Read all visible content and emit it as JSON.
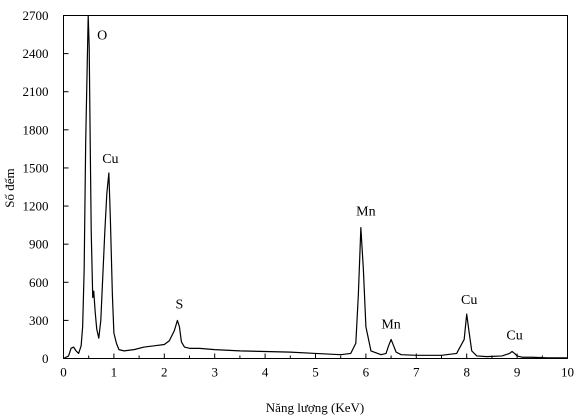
{
  "chart_data": {
    "type": "line",
    "title": "",
    "xlabel": "Năng lượng (KeV)",
    "ylabel": "Số đếm",
    "xlim": [
      0,
      10
    ],
    "ylim": [
      0,
      2700
    ],
    "xticks": [
      0,
      1,
      2,
      3,
      4,
      5,
      6,
      7,
      8,
      9,
      10
    ],
    "xtick_labels": [
      "0",
      "1",
      "2",
      "3",
      "4",
      "5",
      "6",
      "7",
      "8",
      "9",
      "10"
    ],
    "yticks": [
      0,
      300,
      600,
      900,
      1200,
      1500,
      1800,
      2100,
      2400,
      2700
    ],
    "ytick_labels": [
      "0",
      "300",
      "600",
      "900",
      "1200",
      "1500",
      "1800",
      "2100",
      "2400",
      "2700"
    ],
    "grid": false,
    "series": [
      {
        "color": "#000000",
        "x": [
          0.0,
          0.1,
          0.15,
          0.2,
          0.25,
          0.3,
          0.35,
          0.38,
          0.41,
          0.44,
          0.47,
          0.49,
          0.51,
          0.53,
          0.55,
          0.58,
          0.6,
          0.63,
          0.66,
          0.7,
          0.74,
          0.78,
          0.82,
          0.86,
          0.9,
          0.93,
          0.97,
          1.0,
          1.05,
          1.1,
          1.2,
          1.4,
          1.6,
          1.8,
          2.0,
          2.1,
          2.2,
          2.26,
          2.3,
          2.34,
          2.4,
          2.5,
          2.7,
          3.0,
          3.5,
          4.0,
          4.5,
          5.0,
          5.5,
          5.7,
          5.8,
          5.85,
          5.9,
          5.95,
          6.0,
          6.1,
          6.3,
          6.4,
          6.45,
          6.5,
          6.55,
          6.6,
          6.7,
          7.0,
          7.5,
          7.8,
          7.95,
          8.0,
          8.05,
          8.1,
          8.2,
          8.4,
          8.7,
          8.85,
          8.9,
          8.95,
          9.0,
          9.1,
          9.3,
          9.6,
          10.0
        ],
        "y": [
          0,
          20,
          80,
          90,
          60,
          40,
          100,
          250,
          700,
          1700,
          2300,
          2700,
          2450,
          1700,
          1000,
          480,
          530,
          360,
          230,
          160,
          300,
          650,
          1000,
          1300,
          1460,
          1100,
          500,
          200,
          120,
          70,
          60,
          70,
          90,
          100,
          110,
          140,
          220,
          300,
          250,
          130,
          90,
          80,
          80,
          70,
          60,
          55,
          50,
          40,
          30,
          40,
          120,
          500,
          1030,
          700,
          250,
          60,
          30,
          40,
          100,
          150,
          100,
          50,
          30,
          25,
          25,
          40,
          150,
          350,
          200,
          60,
          20,
          15,
          20,
          40,
          55,
          40,
          20,
          10,
          10,
          5,
          5
        ]
      }
    ],
    "annotations": [
      {
        "text": "O",
        "x": 0.53,
        "y": 2700
      },
      {
        "text": "Cu",
        "x": 0.93,
        "y": 1460
      },
      {
        "text": "S",
        "x": 2.3,
        "y": 300
      },
      {
        "text": "Mn",
        "x": 5.9,
        "y": 1030
      },
      {
        "text": "Mn",
        "x": 6.5,
        "y": 150
      },
      {
        "text": "Cu",
        "x": 8.05,
        "y": 350
      },
      {
        "text": "Cu",
        "x": 8.95,
        "y": 55
      }
    ]
  }
}
